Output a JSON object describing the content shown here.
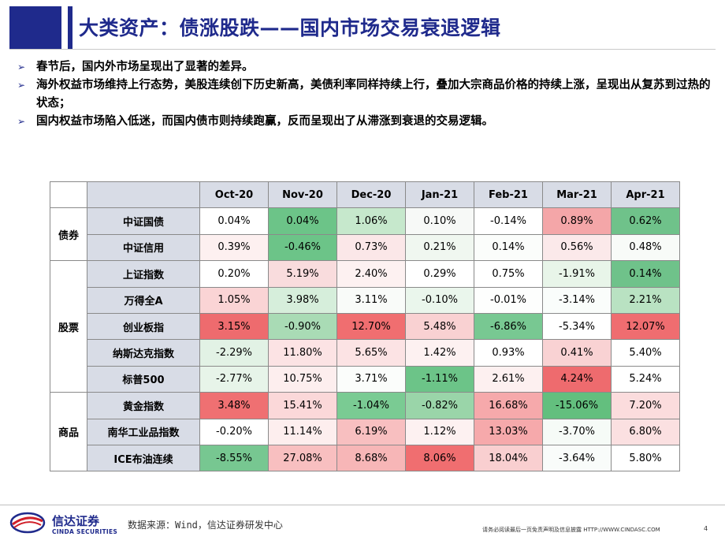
{
  "title": "大类资产：债涨股跌——国内市场交易衰退逻辑",
  "bullets": [
    "春节后，国内外市场呈现出了显著的差异。",
    "海外权益市场维持上行态势，美股连续创下历史新高，美债利率同样持续上行，叠加大宗商品价格的持续上涨，呈现出从复苏到过热的状态；",
    "国内权益市场陷入低迷，而国内债市则持续跑赢，反而呈现出了从滞涨到衰退的交易逻辑。"
  ],
  "table": {
    "months": [
      "Oct-20",
      "Nov-20",
      "Dec-20",
      "Jan-21",
      "Feb-21",
      "Mar-21",
      "Apr-21"
    ],
    "groups": [
      {
        "category": "债券",
        "rows": [
          {
            "label": "中证国债",
            "values": [
              "0.04%",
              "0.04%",
              "1.06%",
              "0.10%",
              "-0.14%",
              "0.89%",
              "0.62%"
            ],
            "colors": [
              "#ffffff",
              "#6cc488",
              "#c6e8cc",
              "#f7f9f7",
              "#ffffff",
              "#f4a6a8",
              "#6fc28a"
            ]
          },
          {
            "label": "中证信用",
            "values": [
              "0.39%",
              "-0.46%",
              "0.73%",
              "0.21%",
              "0.14%",
              "0.56%",
              "0.48%"
            ],
            "colors": [
              "#fdf0f0",
              "#6cc488",
              "#fbe7e8",
              "#f0f7f0",
              "#fbfdfb",
              "#fbe9ea",
              "#f8fbf8"
            ]
          }
        ]
      },
      {
        "category": "股票",
        "rows": [
          {
            "label": "上证指数",
            "values": [
              "0.20%",
              "5.19%",
              "2.40%",
              "0.29%",
              "0.75%",
              "-1.91%",
              "0.14%"
            ],
            "colors": [
              "#ffffff",
              "#f9dcdd",
              "#fdf1f1",
              "#ffffff",
              "#ffffff",
              "#e8f5e9",
              "#6fc28a"
            ]
          },
          {
            "label": "万得全A",
            "values": [
              "1.05%",
              "3.98%",
              "3.11%",
              "-0.10%",
              "-0.01%",
              "-3.14%",
              "2.21%"
            ],
            "colors": [
              "#fad4d5",
              "#d6eedb",
              "#f9fbf9",
              "#eaf6ec",
              "#fdfefd",
              "#fafdfb",
              "#b9e2c2"
            ]
          },
          {
            "label": "创业板指",
            "values": [
              "3.15%",
              "-0.90%",
              "12.70%",
              "5.48%",
              "-6.86%",
              "-5.34%",
              "12.07%"
            ],
            "colors": [
              "#ee6b6e",
              "#a9dbb5",
              "#f06e70",
              "#f9d1d2",
              "#78c892",
              "#ffffff",
              "#ef6d70"
            ]
          },
          {
            "label": "纳斯达克指数",
            "values": [
              "-2.29%",
              "11.80%",
              "5.65%",
              "1.42%",
              "0.93%",
              "0.41%",
              "5.40%"
            ],
            "colors": [
              "#e2f2e5",
              "#fce3e4",
              "#fce3e4",
              "#fdf1f1",
              "#ffffff",
              "#f9d2d3",
              "#ffffff"
            ]
          },
          {
            "label": "标普500",
            "values": [
              "-2.77%",
              "10.75%",
              "3.71%",
              "-1.11%",
              "2.61%",
              "4.24%",
              "5.24%"
            ],
            "colors": [
              "#e7f4e9",
              "#fdeeee",
              "#fbfdfb",
              "#6cc488",
              "#fdf0f0",
              "#ee6b6e",
              "#ffffff"
            ]
          }
        ]
      },
      {
        "category": "商品",
        "rows": [
          {
            "label": "黄金指数",
            "values": [
              "3.48%",
              "15.41%",
              "-1.04%",
              "-0.82%",
              "16.68%",
              "-15.06%",
              "7.20%"
            ],
            "colors": [
              "#ef7072",
              "#fbd8d9",
              "#7acb93",
              "#9ad5a9",
              "#f6a9ab",
              "#63bf7e",
              "#fbdcdd"
            ]
          },
          {
            "label": "南华工业品指数",
            "values": [
              "-0.20%",
              "11.14%",
              "6.19%",
              "1.12%",
              "13.03%",
              "-3.70%",
              "6.80%"
            ],
            "colors": [
              "#ffffff",
              "#fdeeee",
              "#f8bfc0",
              "#fdf1f1",
              "#f6a9ab",
              "#f6fbf7",
              "#fbe0e1"
            ]
          },
          {
            "label": "ICE布油连续",
            "values": [
              "-8.55%",
              "27.08%",
              "8.68%",
              "8.06%",
              "18.04%",
              "-3.64%",
              "5.80%"
            ],
            "colors": [
              "#77c791",
              "#f8bfc0",
              "#f7b6b7",
              "#f06e70",
              "#f9cfd0",
              "#f9fcfa",
              "#ffffff"
            ]
          }
        ]
      }
    ]
  },
  "footer": {
    "logo_cn": "信达证券",
    "logo_en": "CINDA SECURITIES",
    "source": "数据来源：Wind，信达证券研发中心",
    "disclaimer": "请务必阅读最后一页免责声明及信息披露  HTTP://WWW.CINDASC.COM",
    "page_number": "4"
  },
  "colors": {
    "brand": "#1f2a8c",
    "header_fill": "#d8dce6"
  }
}
